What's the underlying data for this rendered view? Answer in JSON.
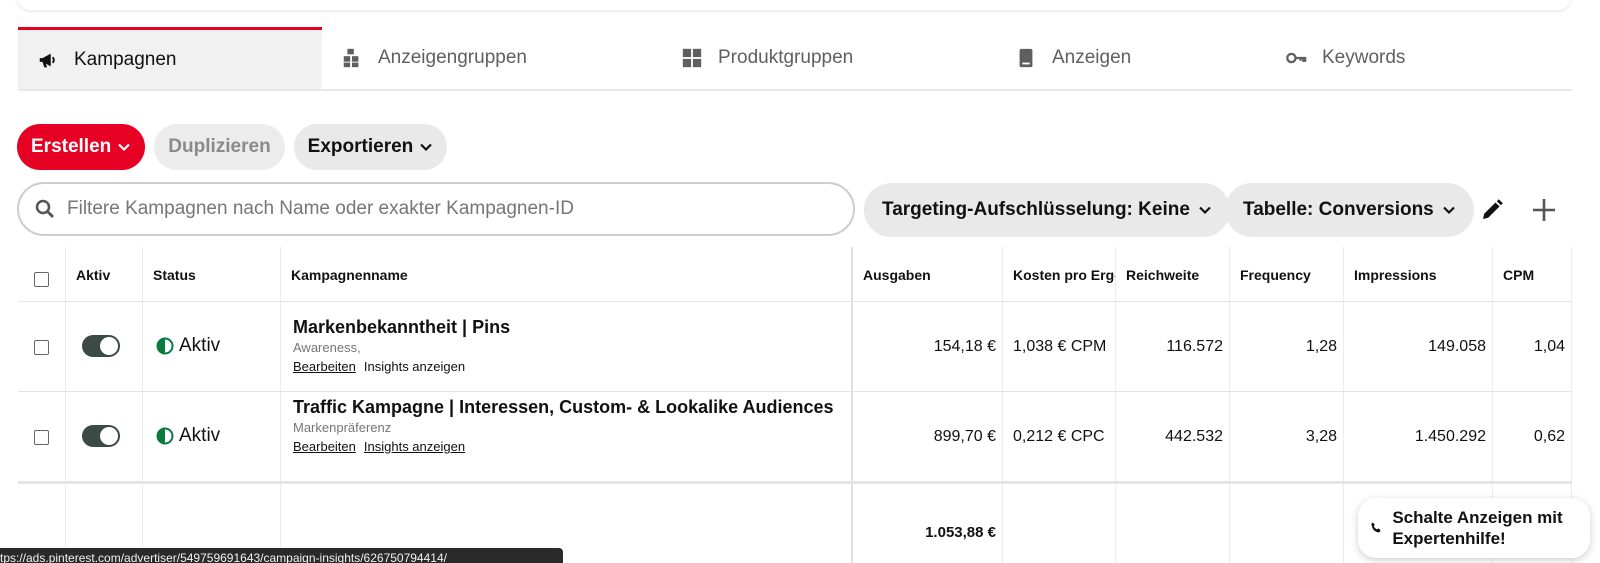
{
  "tabs": [
    {
      "label": "Kampagnen",
      "icon": "megaphone-icon",
      "active": true
    },
    {
      "label": "Anzeigengruppen",
      "icon": "boxes-icon",
      "active": false
    },
    {
      "label": "Produktgruppen",
      "icon": "grid-icon",
      "active": false
    },
    {
      "label": "Anzeigen",
      "icon": "phone-card-icon",
      "active": false
    },
    {
      "label": "Keywords",
      "icon": "key-icon",
      "active": false
    }
  ],
  "toolbar": {
    "create_label": "Erstellen",
    "duplicate_label": "Duplizieren",
    "export_label": "Exportieren"
  },
  "search": {
    "placeholder": "Filtere Kampagnen nach Name oder exakter Kampagnen-ID",
    "value": ""
  },
  "filters": {
    "targeting_label": "Targeting-Aufschlüsselung: Keine",
    "table_label": "Tabelle: Conversions"
  },
  "table": {
    "headers": [
      "Aktiv",
      "Status",
      "Kampagnenname",
      "Ausgaben",
      "Kosten pro Ergebnis",
      "Reichweite",
      "Frequency",
      "Impressions",
      "CPM"
    ],
    "rows": [
      {
        "status": "Aktiv",
        "name": "Markenbekanntheit | Pins",
        "objective": "Awareness,",
        "edit": "Bearbeiten",
        "insights": "Insights anzeigen",
        "spend": "154,18 €",
        "cost_per_result": "1,038 € CPM",
        "reach": "116.572",
        "frequency": "1,28",
        "impressions": "149.058",
        "cpm": "1,04"
      },
      {
        "status": "Aktiv",
        "name": "Traffic Kampagne | Interessen, Custom- & Lookalike Audiences",
        "objective": "Markenpräferenz",
        "edit": "Bearbeiten",
        "insights": "Insights anzeigen",
        "spend": "899,70 €",
        "cost_per_result": "0,212 € CPC",
        "reach": "442.532",
        "frequency": "3,28",
        "impressions": "1.450.292",
        "cpm": "0,62"
      }
    ],
    "total_spend": "1.053,88 €"
  },
  "help": {
    "label": "Schalte Anzeigen mit Expertenhilfe!"
  },
  "statusbar": {
    "url": "tps://ads.pinterest.com/advertiser/549759691643/campaign-insights/626750794414/"
  },
  "colors": {
    "accent": "#e60023",
    "toggle_on": "#3b4a44",
    "status_green": "#0a7a3e"
  }
}
